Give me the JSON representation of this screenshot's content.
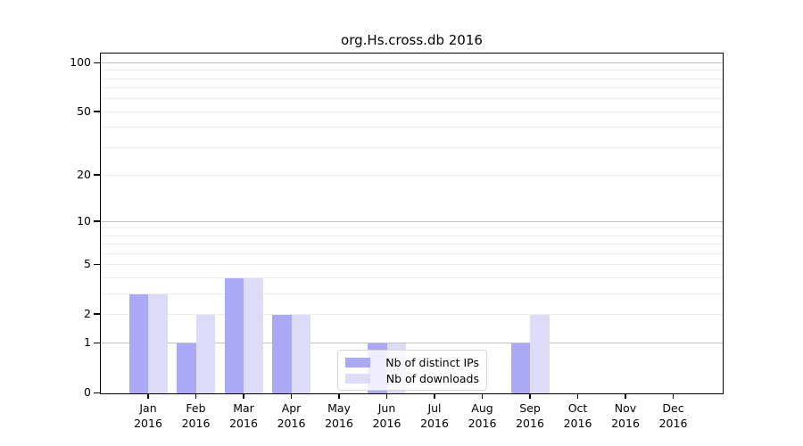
{
  "chart_data": {
    "type": "bar",
    "title": "org.Hs.cross.db 2016",
    "categories": [
      {
        "label": "Jan",
        "sub": "2016"
      },
      {
        "label": "Feb",
        "sub": "2016"
      },
      {
        "label": "Mar",
        "sub": "2016"
      },
      {
        "label": "Apr",
        "sub": "2016"
      },
      {
        "label": "May",
        "sub": "2016"
      },
      {
        "label": "Jun",
        "sub": "2016"
      },
      {
        "label": "Jul",
        "sub": "2016"
      },
      {
        "label": "Aug",
        "sub": "2016"
      },
      {
        "label": "Sep",
        "sub": "2016"
      },
      {
        "label": "Oct",
        "sub": "2016"
      },
      {
        "label": "Nov",
        "sub": "2016"
      },
      {
        "label": "Dec",
        "sub": "2016"
      }
    ],
    "series": [
      {
        "name": "Nb of distinct IPs",
        "color": "#a9a9f7",
        "values": [
          3,
          1,
          4,
          2,
          0,
          1,
          0,
          0,
          1,
          0,
          0,
          0
        ]
      },
      {
        "name": "Nb of downloads",
        "color": "#dcdcf8",
        "values": [
          3,
          2,
          4,
          2,
          0,
          1,
          0,
          0,
          2,
          0,
          0,
          0
        ]
      }
    ],
    "xlabel": "",
    "ylabel": "",
    "yscale": "log1p",
    "ytick_values": [
      0,
      1,
      2,
      5,
      10,
      20,
      50,
      100
    ],
    "ylim": [
      0,
      115
    ],
    "grid": "horizontal",
    "legend_position": "inside-bottom-center",
    "colors": {
      "bar_distinct_ips": "#a9a9f7",
      "bar_downloads": "#dcdcf8",
      "grid_major": "#c2c2c2",
      "grid_minor": "#ededed",
      "axis": "#000000"
    }
  }
}
